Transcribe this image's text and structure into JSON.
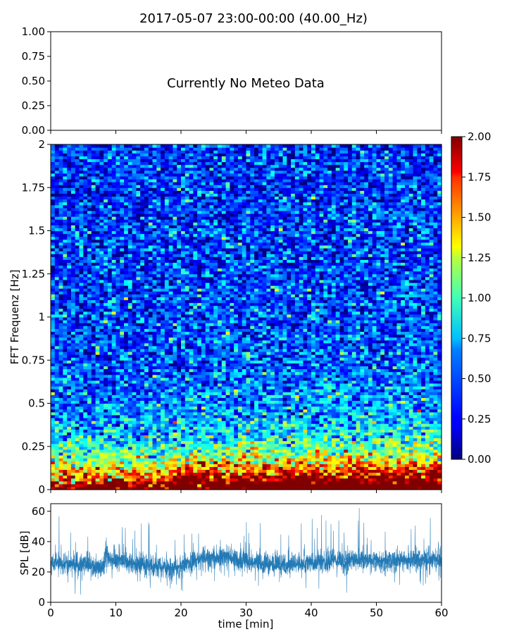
{
  "figure": {
    "title": "2017-05-07 23:00-00:00 (40.00_Hz)"
  },
  "chart_data": [
    {
      "panel": "meteo",
      "type": "line",
      "series": [],
      "ylim": [
        0,
        1
      ],
      "yticks": [
        "0.00",
        "0.25",
        "0.50",
        "0.75",
        "1.00"
      ],
      "annotation": "Currently No Meteo Data",
      "grid": false
    },
    {
      "panel": "spectrogram",
      "type": "heatmap",
      "ylabel": "FFT Frequenz [Hz]",
      "ylim": [
        0,
        2
      ],
      "yticks": [
        "0",
        "0.25",
        "0.5",
        "0.75",
        "1",
        "1.25",
        "1.5",
        "1.75",
        "2"
      ],
      "xlim": [
        0,
        60
      ],
      "colorbar": {
        "min": 0,
        "max": 2,
        "ticks": [
          "0.00",
          "0.25",
          "0.50",
          "0.75",
          "1.00",
          "1.25",
          "1.50",
          "1.75",
          "2.00"
        ],
        "colormap": "jet"
      },
      "grid": false
    },
    {
      "panel": "spl",
      "type": "line",
      "xlabel": "time [min]",
      "ylabel": "SPL [dB]",
      "xlim": [
        0,
        60
      ],
      "ylim": [
        0,
        65
      ],
      "xticks": [
        "0",
        "10",
        "20",
        "30",
        "40",
        "50",
        "60"
      ],
      "yticks": [
        "0",
        "20",
        "40",
        "60"
      ],
      "series_color": "#1f77b4",
      "mean_profile": [
        [
          0,
          26
        ],
        [
          5,
          25
        ],
        [
          8,
          23
        ],
        [
          8.5,
          33
        ],
        [
          9,
          28
        ],
        [
          12,
          26
        ],
        [
          15,
          25
        ],
        [
          17,
          23
        ],
        [
          19,
          22
        ],
        [
          21,
          26
        ],
        [
          24,
          29
        ],
        [
          27,
          30
        ],
        [
          30,
          27
        ],
        [
          33,
          25
        ],
        [
          36,
          25
        ],
        [
          40,
          26
        ],
        [
          44,
          27
        ],
        [
          48,
          28
        ],
        [
          52,
          27
        ],
        [
          56,
          28
        ],
        [
          60,
          28
        ]
      ],
      "grid": false
    }
  ]
}
